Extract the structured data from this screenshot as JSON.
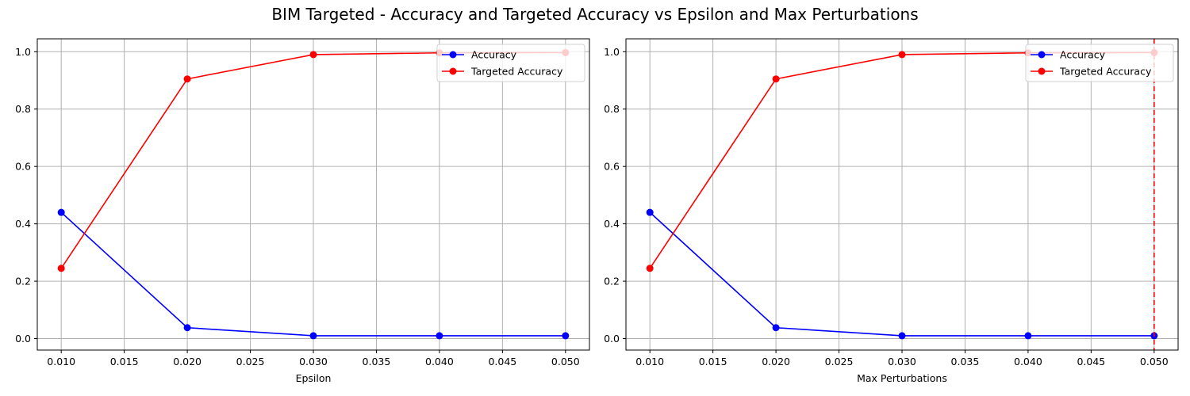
{
  "figure": {
    "title": "BIM Targeted - Accuracy and Targeted Accuracy vs Epsilon and Max Perturbations"
  },
  "chart_data": [
    {
      "type": "line",
      "title": "",
      "xlabel": "Epsilon",
      "ylabel": "",
      "x": [
        0.01,
        0.02,
        0.03,
        0.04,
        0.05
      ],
      "series": [
        {
          "name": "Accuracy",
          "color": "#0000ff",
          "marker": "circle",
          "values": [
            0.44,
            0.038,
            0.01,
            0.01,
            0.01
          ]
        },
        {
          "name": "Targeted Accuracy",
          "color": "#ff0000",
          "marker": "circle",
          "values": [
            0.245,
            0.905,
            0.99,
            0.996,
            0.997
          ]
        }
      ],
      "xlim": [
        0.0081,
        0.0519
      ],
      "ylim": [
        -0.04,
        1.045
      ],
      "xticks": [
        "0.010",
        "0.015",
        "0.020",
        "0.025",
        "0.030",
        "0.035",
        "0.040",
        "0.045",
        "0.050"
      ],
      "xtick_values": [
        0.01,
        0.015,
        0.02,
        0.025,
        0.03,
        0.035,
        0.04,
        0.045,
        0.05
      ],
      "yticks": [
        "0.0",
        "0.2",
        "0.4",
        "0.6",
        "0.8",
        "1.0"
      ],
      "ytick_values": [
        0,
        0.2,
        0.4,
        0.6,
        0.8,
        1.0
      ],
      "grid": true,
      "legend": "top-right"
    },
    {
      "type": "line",
      "title": "",
      "xlabel": "Max Perturbations",
      "ylabel": "",
      "x": [
        0.01,
        0.02,
        0.03,
        0.04,
        0.05
      ],
      "series": [
        {
          "name": "Accuracy",
          "color": "#0000ff",
          "marker": "circle",
          "values": [
            0.44,
            0.038,
            0.01,
            0.01,
            0.01
          ]
        },
        {
          "name": "Targeted Accuracy",
          "color": "#ff0000",
          "marker": "circle",
          "values": [
            0.245,
            0.905,
            0.99,
            0.996,
            0.997
          ]
        }
      ],
      "xlim": [
        0.0081,
        0.0519
      ],
      "ylim": [
        -0.04,
        1.045
      ],
      "xticks": [
        "0.010",
        "0.015",
        "0.020",
        "0.025",
        "0.030",
        "0.035",
        "0.040",
        "0.045",
        "0.050"
      ],
      "xtick_values": [
        0.01,
        0.015,
        0.02,
        0.025,
        0.03,
        0.035,
        0.04,
        0.045,
        0.05
      ],
      "yticks": [
        "0.0",
        "0.2",
        "0.4",
        "0.6",
        "0.8",
        "1.0"
      ],
      "ytick_values": [
        0,
        0.2,
        0.4,
        0.6,
        0.8,
        1.0
      ],
      "grid": true,
      "legend": "top-right",
      "vline": {
        "x": 0.05,
        "color": "#ff0000",
        "style": "dashed"
      }
    }
  ]
}
